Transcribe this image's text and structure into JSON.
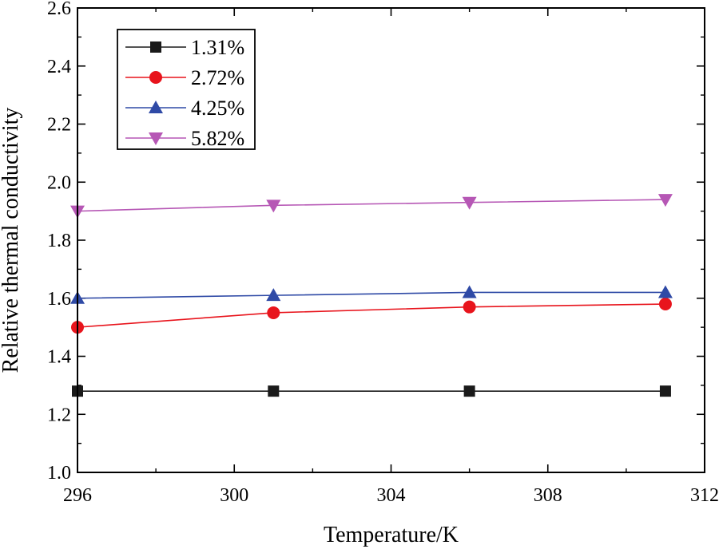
{
  "chart_data": {
    "type": "line",
    "title": "",
    "xlabel": "Temperature/K",
    "ylabel": "Relative thermal conductivity",
    "xlim": [
      296,
      312
    ],
    "ylim": [
      1.0,
      2.6
    ],
    "x_ticks": [
      296,
      300,
      304,
      308,
      312
    ],
    "y_ticks": [
      1.0,
      1.2,
      1.4,
      1.6,
      1.8,
      2.0,
      2.2,
      2.4,
      2.6
    ],
    "x_tick_labels": [
      "296",
      "300",
      "304",
      "308",
      "312"
    ],
    "y_tick_labels": [
      "1.0",
      "1.2",
      "1.4",
      "1.6",
      "1.8",
      "2.0",
      "2.2",
      "2.4",
      "2.6"
    ],
    "legend_position": "top-left",
    "x": [
      296,
      301,
      306,
      311
    ],
    "series": [
      {
        "name": "1.31%",
        "values": [
          1.28,
          1.28,
          1.28,
          1.28
        ],
        "color": "#1a1a1a",
        "marker": "square"
      },
      {
        "name": "2.72%",
        "values": [
          1.5,
          1.55,
          1.57,
          1.58
        ],
        "color": "#e8141c",
        "marker": "circle"
      },
      {
        "name": "4.25%",
        "values": [
          1.6,
          1.61,
          1.62,
          1.62
        ],
        "color": "#2f4aa6",
        "marker": "triangle-up"
      },
      {
        "name": "5.82%",
        "values": [
          1.9,
          1.92,
          1.93,
          1.94
        ],
        "color": "#b657b5",
        "marker": "triangle-down"
      }
    ]
  }
}
